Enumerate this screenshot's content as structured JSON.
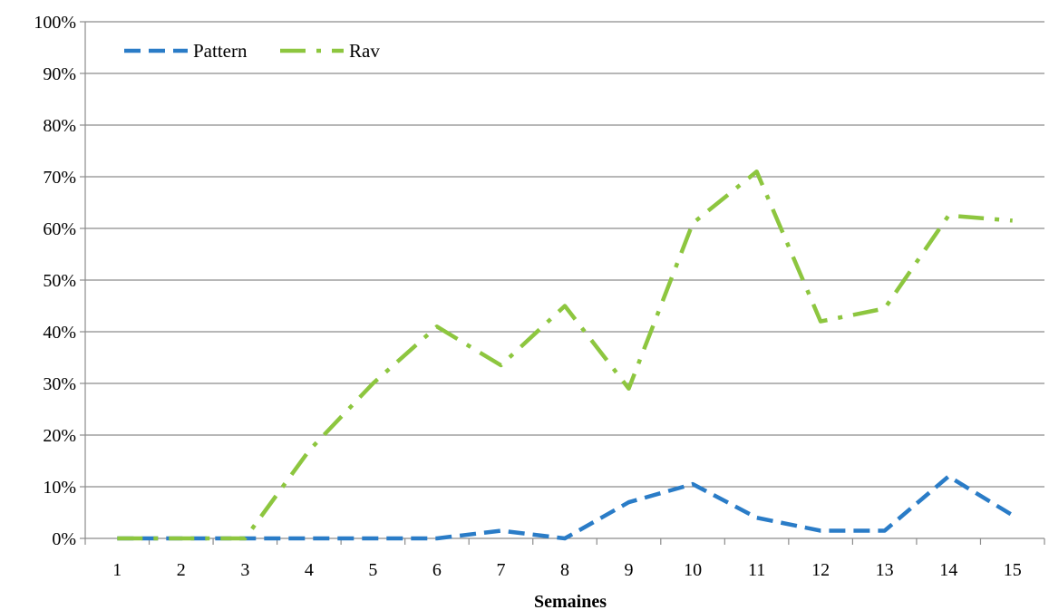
{
  "chart_data": {
    "type": "line",
    "x": [
      "1",
      "2",
      "3",
      "4",
      "5",
      "6",
      "7",
      "8",
      "9",
      "10",
      "11",
      "12",
      "13",
      "14",
      "15"
    ],
    "xlabel": "Semaines",
    "ylabel": "",
    "ylim": [
      0,
      100
    ],
    "yticks": [
      "0%",
      "10%",
      "20%",
      "30%",
      "40%",
      "50%",
      "60%",
      "70%",
      "80%",
      "90%",
      "100%"
    ],
    "grid": true,
    "legend": "top-left",
    "series": [
      {
        "name": "Pattern",
        "color": "#2a7cc7",
        "style": "dashed",
        "values": [
          0,
          0,
          0,
          0,
          0,
          0,
          1.5,
          0,
          7,
          10.5,
          4,
          1.5,
          1.5,
          12,
          4.5
        ]
      },
      {
        "name": "Rav",
        "color": "#8dc63f",
        "style": "dash-dot",
        "values": [
          0,
          0,
          0,
          17,
          30,
          41,
          33.5,
          45,
          29,
          61,
          71,
          42,
          44.5,
          62.5,
          61.5
        ]
      }
    ]
  }
}
